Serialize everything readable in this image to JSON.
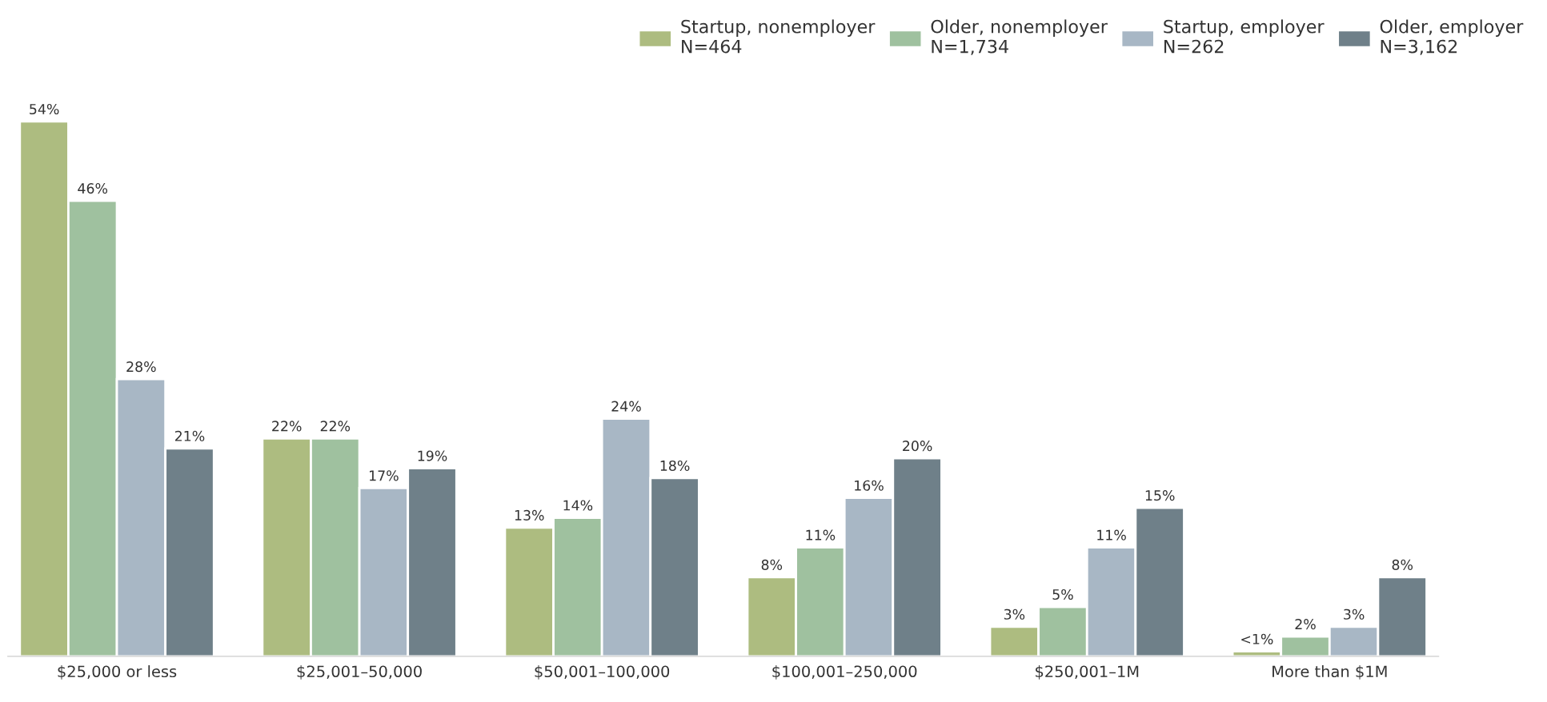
{
  "chart_data": {
    "type": "bar",
    "categories": [
      "$25,000 or less",
      "$25,001–50,000",
      "$50,001–100,000",
      "$100,001–250,000",
      "$250,001–1M",
      "More than $1M"
    ],
    "series": [
      {
        "name": "Startup, nonemployer\nN=464",
        "color": "#adbc80",
        "values": [
          54,
          22,
          13,
          8,
          3,
          0.5
        ],
        "value_labels": [
          "54%",
          "22%",
          "13%",
          "8%",
          "3%",
          "<1%"
        ]
      },
      {
        "name": "Older, nonemployer\nN=1,734",
        "color": "#9fc19f",
        "values": [
          46,
          22,
          14,
          11,
          5,
          2
        ],
        "value_labels": [
          "46%",
          "22%",
          "14%",
          "11%",
          "5%",
          "2%"
        ]
      },
      {
        "name": "Startup, employer\nN=262",
        "color": "#a8b7c5",
        "values": [
          28,
          17,
          24,
          16,
          11,
          3
        ],
        "value_labels": [
          "28%",
          "17%",
          "24%",
          "16%",
          "11%",
          "3%"
        ]
      },
      {
        "name": "Older, employer\nN=3,162",
        "color": "#6f8089",
        "values": [
          21,
          19,
          18,
          20,
          15,
          8
        ],
        "value_labels": [
          "21%",
          "19%",
          "18%",
          "20%",
          "15%",
          "8%"
        ]
      }
    ],
    "legend": "top right",
    "grid": false
  }
}
